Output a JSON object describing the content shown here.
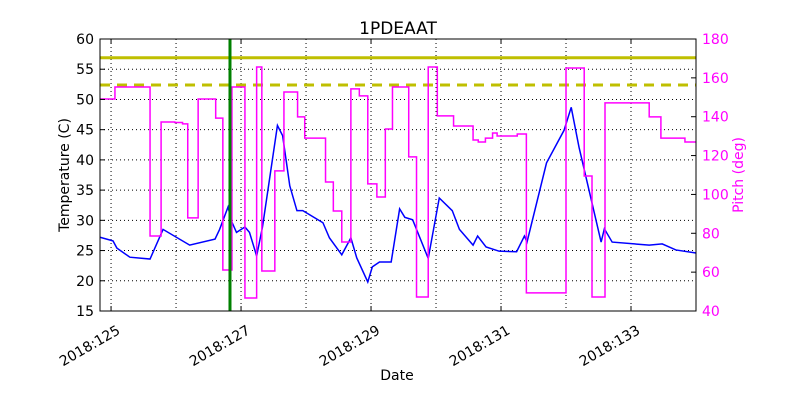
{
  "chart_data": {
    "type": "line",
    "title": "1PDEAAT",
    "xlabel": "Date",
    "ylabel": "Temperature (C)",
    "y2label": "Pitch (deg)",
    "xlim": [
      124.83,
      134.0
    ],
    "ylim": [
      15,
      60
    ],
    "y2lim": [
      40,
      180
    ],
    "grid": true,
    "x_ticks": [
      125,
      127,
      129,
      131,
      133
    ],
    "x_tick_labels": [
      "2018:125",
      "2018:127",
      "2018:129",
      "2018:131",
      "2018:133"
    ],
    "x_minor_grid_step": 1,
    "y_ticks": [
      15,
      20,
      25,
      30,
      35,
      40,
      45,
      50,
      55,
      60
    ],
    "y2_ticks": [
      40,
      60,
      80,
      100,
      120,
      140,
      160,
      180
    ],
    "colors": {
      "temperature": "#0000ff",
      "pitch": "#ff00ff",
      "limits": "#bfbf00",
      "marker": "#008000",
      "y2axis": "#ff00ff"
    },
    "limit_lines": [
      {
        "value": 56.9,
        "style": "solid"
      },
      {
        "value": 52.4,
        "style": "dashed"
      }
    ],
    "vertical_marker": {
      "x": 126.83
    },
    "series": [
      {
        "axis": "left",
        "style": "line",
        "x": [
          124.83,
          125.03,
          125.09,
          125.29,
          125.6,
          125.8,
          126.21,
          126.6,
          126.67,
          126.8,
          126.86,
          126.93,
          127.06,
          127.13,
          127.24,
          127.33,
          127.56,
          127.64,
          127.75,
          127.86,
          127.95,
          128.26,
          128.36,
          128.55,
          128.69,
          128.78,
          128.95,
          129.02,
          129.13,
          129.31,
          129.44,
          129.52,
          129.64,
          129.88,
          130.05,
          130.25,
          130.36,
          130.57,
          130.64,
          130.77,
          130.97,
          131.24,
          131.36,
          131.4,
          131.7,
          131.97,
          132.08,
          132.2,
          132.54,
          132.59,
          132.71,
          133.28,
          133.48,
          133.69,
          134.0
        ],
        "values": [
          27.2,
          26.6,
          25.4,
          23.9,
          23.6,
          28.5,
          25.9,
          26.9,
          28.5,
          32.2,
          29.7,
          28.0,
          28.9,
          28.0,
          24.1,
          28.9,
          45.7,
          44.0,
          35.7,
          31.6,
          31.6,
          29.6,
          27.1,
          24.3,
          27.1,
          23.8,
          19.8,
          22.3,
          23.1,
          23.1,
          31.9,
          30.5,
          30.1,
          23.7,
          33.7,
          31.6,
          28.5,
          25.9,
          27.4,
          25.6,
          24.9,
          24.8,
          27.4,
          26.4,
          39.5,
          44.9,
          48.7,
          42.1,
          26.4,
          28.6,
          26.4,
          25.9,
          26.1,
          25.1,
          24.6
        ]
      },
      {
        "axis": "right",
        "style": "step",
        "x": [
          124.83,
          125.06,
          125.6,
          125.77,
          125.98,
          126.1,
          126.18,
          126.34,
          126.61,
          126.72,
          126.86,
          127.06,
          127.24,
          127.32,
          127.52,
          127.66,
          127.87,
          127.98,
          128.3,
          128.42,
          128.55,
          128.69,
          128.82,
          128.95,
          129.09,
          129.22,
          129.33,
          129.58,
          129.7,
          129.88,
          130.02,
          130.27,
          130.57,
          130.65,
          130.76,
          130.87,
          130.94,
          131.25,
          131.39,
          132.0,
          132.28,
          132.4,
          132.6,
          133.28,
          133.46,
          133.83,
          134.0
        ],
        "values": [
          149.1,
          155.3,
          78.6,
          137.3,
          137.0,
          136.3,
          87.9,
          149.1,
          139.3,
          61.1,
          155.3,
          46.7,
          165.6,
          60.6,
          112.1,
          152.7,
          139.9,
          129.0,
          106.4,
          91.5,
          75.5,
          154.3,
          150.7,
          105.4,
          98.7,
          133.7,
          155.3,
          119.3,
          47.2,
          165.6,
          140.4,
          135.2,
          128.0,
          127.0,
          129.0,
          131.6,
          130.1,
          131.1,
          49.3,
          165.1,
          109.5,
          47.2,
          147.1,
          139.9,
          129.0,
          127.0,
          127.0
        ]
      }
    ]
  }
}
